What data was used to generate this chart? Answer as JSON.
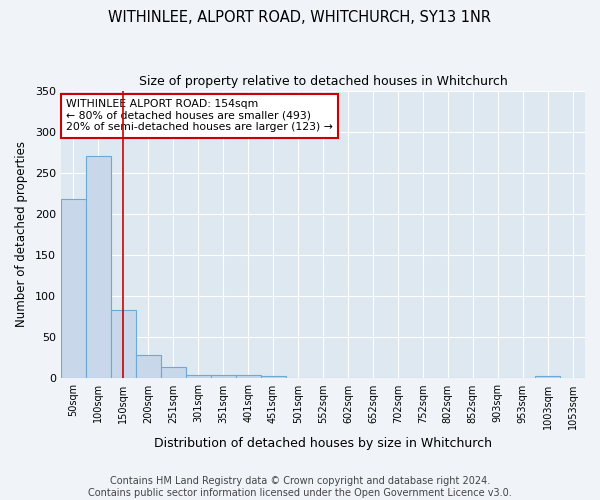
{
  "title": "WITHINLEE, ALPORT ROAD, WHITCHURCH, SY13 1NR",
  "subtitle": "Size of property relative to detached houses in Whitchurch",
  "xlabel": "Distribution of detached houses by size in Whitchurch",
  "ylabel": "Number of detached properties",
  "bar_color": "#c8d8ea",
  "bar_edgecolor": "#6aaad4",
  "bar_linewidth": 0.8,
  "categories": [
    "50sqm",
    "100sqm",
    "150sqm",
    "200sqm",
    "251sqm",
    "301sqm",
    "351sqm",
    "401sqm",
    "451sqm",
    "501sqm",
    "552sqm",
    "602sqm",
    "652sqm",
    "702sqm",
    "752sqm",
    "802sqm",
    "852sqm",
    "903sqm",
    "953sqm",
    "1003sqm",
    "1053sqm"
  ],
  "values": [
    218,
    270,
    83,
    28,
    14,
    4,
    4,
    4,
    3,
    0,
    0,
    0,
    0,
    0,
    0,
    0,
    0,
    0,
    0,
    3,
    0
  ],
  "ylim": [
    0,
    350
  ],
  "yticks": [
    0,
    50,
    100,
    150,
    200,
    250,
    300,
    350
  ],
  "vline_x": 2,
  "vline_color": "#cc0000",
  "vline_linewidth": 1.2,
  "annotation_text": "WITHINLEE ALPORT ROAD: 154sqm\n← 80% of detached houses are smaller (493)\n20% of semi-detached houses are larger (123) →",
  "annotation_box_edgecolor": "#cc0000",
  "annotation_box_facecolor": "#ffffff",
  "annotation_fontsize": 7.8,
  "footer_text": "Contains HM Land Registry data © Crown copyright and database right 2024.\nContains public sector information licensed under the Open Government Licence v3.0.",
  "title_fontsize": 10.5,
  "subtitle_fontsize": 9,
  "xlabel_fontsize": 9,
  "ylabel_fontsize": 8.5,
  "footer_fontsize": 7,
  "background_color": "#f0f4f8",
  "grid_color": "#ffffff",
  "axes_background": "#dde8f0"
}
